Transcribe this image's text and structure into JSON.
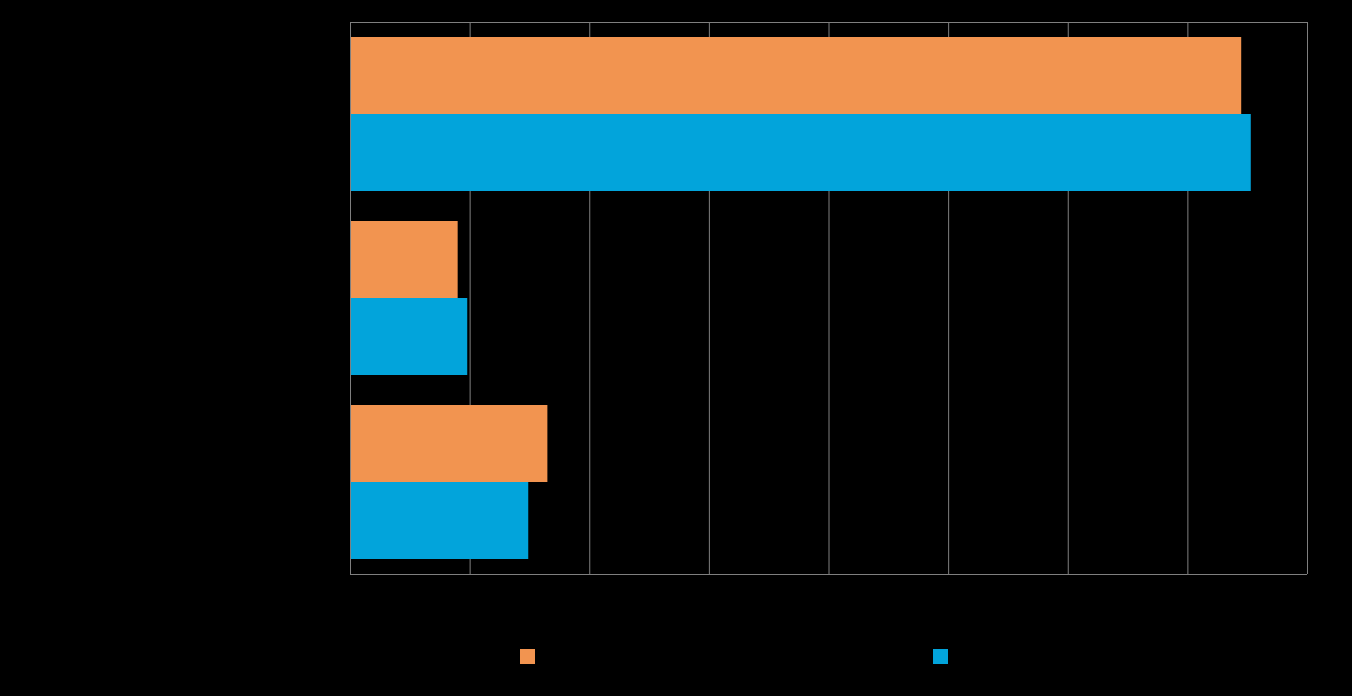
{
  "chart_data": {
    "type": "bar",
    "orientation": "horizontal",
    "categories": [
      "",
      "",
      ""
    ],
    "series": [
      {
        "name": "",
        "color": "#F29450",
        "values": [
          7.45,
          0.9,
          1.65
        ]
      },
      {
        "name": "",
        "color": "#02A4DB",
        "values": [
          7.53,
          0.98,
          1.49
        ]
      }
    ],
    "xlim": [
      0,
      8
    ],
    "x_ticks": [
      0,
      1,
      2,
      3,
      4,
      5,
      6,
      7,
      8
    ],
    "grid": true,
    "grid_color": "#7F7F7F",
    "background": "#000000",
    "legend_position": "bottom",
    "title": "",
    "xlabel": "",
    "ylabel": ""
  }
}
